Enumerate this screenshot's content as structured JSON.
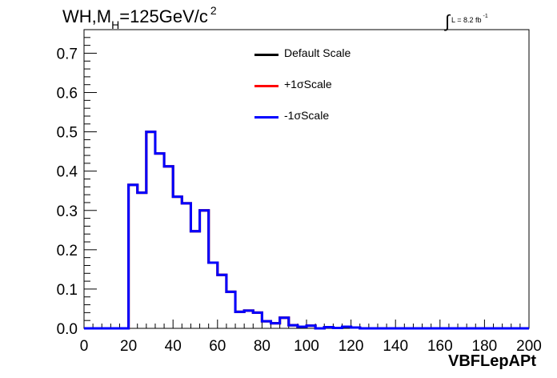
{
  "title": {
    "prefix": "WH,M",
    "sub": "H",
    "main": "=125GeV/c",
    "sup": "2"
  },
  "lumi": {
    "integral": "∫",
    "text": "L = 8.2 fb",
    "sup": "-1"
  },
  "colors": {
    "default": "#000000",
    "plus": "#ff0000",
    "minus": "#0000ff"
  },
  "chart_data": {
    "type": "line",
    "style": "step-histogram",
    "xlabel": "VBFLepAPt",
    "ylabel": "",
    "xlim": [
      0,
      200
    ],
    "ylim": [
      0,
      0.76
    ],
    "xticks": [
      0,
      20,
      40,
      60,
      80,
      100,
      120,
      140,
      160,
      180,
      200
    ],
    "yticks": [
      0.0,
      0.1,
      0.2,
      0.3,
      0.4,
      0.5,
      0.6,
      0.7
    ],
    "grid": false,
    "legend_placement": "top-center",
    "bin_edges": [
      0,
      4,
      8,
      12,
      16,
      20,
      24,
      28,
      32,
      36,
      40,
      44,
      48,
      52,
      56,
      60,
      64,
      68,
      72,
      76,
      80,
      84,
      88,
      92,
      96,
      100,
      104,
      108,
      112,
      116,
      120,
      124,
      128,
      132,
      136,
      140,
      144,
      148,
      152,
      156,
      160,
      164,
      168,
      172,
      176,
      180,
      184,
      188,
      192,
      196,
      200
    ],
    "series": [
      {
        "name": "Default Scale",
        "color": "#000000",
        "values": [
          0,
          0,
          0,
          0,
          0,
          0.365,
          0.345,
          0.5,
          0.445,
          0.412,
          0.335,
          0.318,
          0.247,
          0.3,
          0.167,
          0.136,
          0.093,
          0.042,
          0.045,
          0.04,
          0.018,
          0.013,
          0.027,
          0.008,
          0.004,
          0.007,
          0,
          0.003,
          0.001,
          0.004,
          0.002,
          0,
          0,
          0,
          0,
          0,
          0,
          0,
          0,
          0,
          0,
          0,
          0,
          0,
          0,
          0,
          0,
          0,
          0,
          0
        ]
      },
      {
        "name": "+1σScale",
        "color": "#ff0000",
        "values": [
          0,
          0,
          0,
          0,
          0,
          0.365,
          0.345,
          0.5,
          0.445,
          0.412,
          0.335,
          0.318,
          0.247,
          0.3,
          0.167,
          0.136,
          0.093,
          0.042,
          0.045,
          0.04,
          0.018,
          0.013,
          0.027,
          0.008,
          0.004,
          0.007,
          0,
          0.003,
          0.001,
          0.004,
          0.002,
          0,
          0,
          0,
          0,
          0,
          0,
          0,
          0,
          0,
          0,
          0,
          0,
          0,
          0,
          0,
          0,
          0,
          0,
          0
        ]
      },
      {
        "name": "-1σScale",
        "color": "#0000ff",
        "values": [
          0,
          0,
          0,
          0,
          0,
          0.365,
          0.345,
          0.5,
          0.445,
          0.412,
          0.335,
          0.318,
          0.247,
          0.3,
          0.167,
          0.136,
          0.093,
          0.042,
          0.045,
          0.04,
          0.018,
          0.013,
          0.027,
          0.008,
          0.004,
          0.007,
          0,
          0.003,
          0.001,
          0.004,
          0.002,
          0,
          0,
          0,
          0,
          0,
          0,
          0,
          0,
          0,
          0,
          0,
          0,
          0,
          0,
          0,
          0,
          0,
          0,
          0
        ]
      }
    ]
  }
}
